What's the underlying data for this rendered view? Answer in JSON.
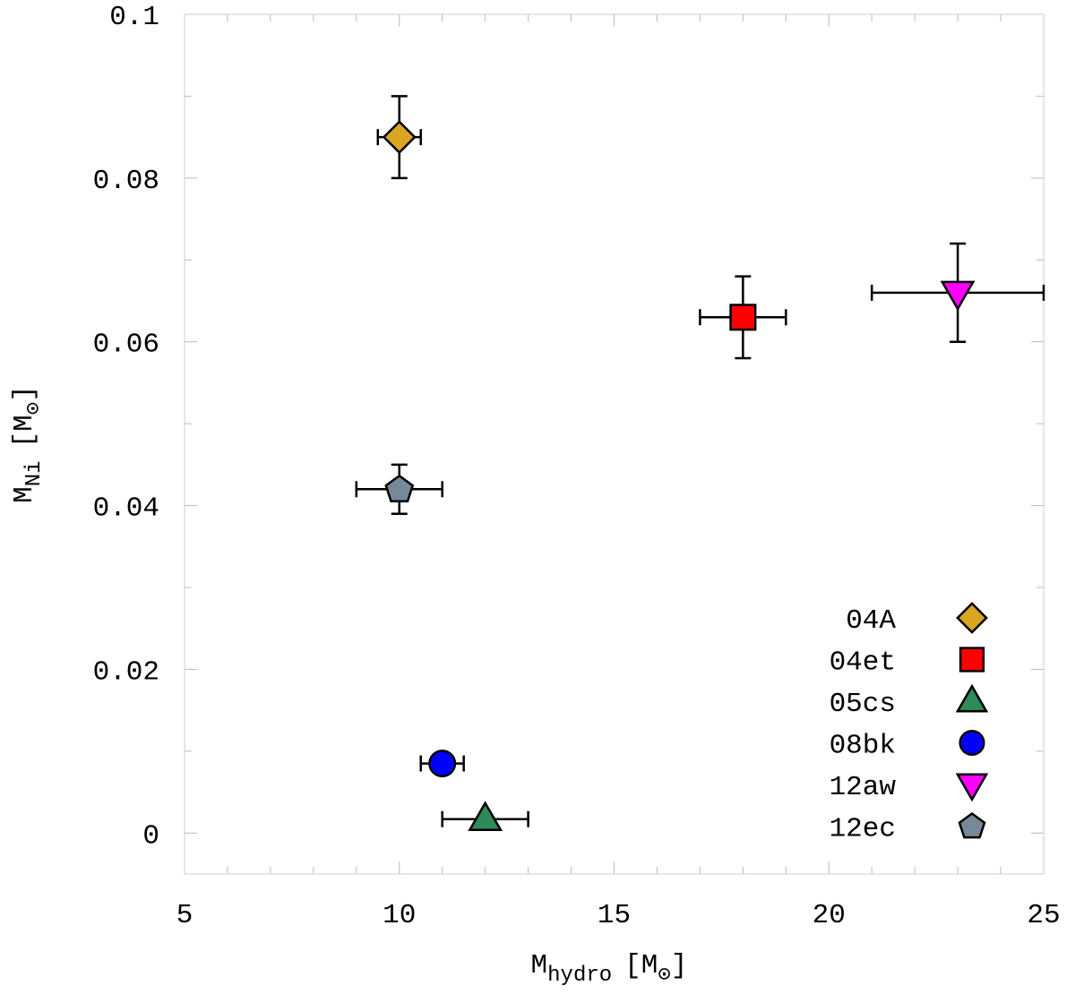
{
  "chart_data": {
    "type": "scatter",
    "title": "",
    "xlabel": {
      "main": "M",
      "sub": "hydro",
      "unit_open": "[M",
      "unit_close": "]"
    },
    "ylabel": {
      "main": "M",
      "sub": "Ni",
      "unit_open": "[M",
      "unit_close": "]"
    },
    "xlim": [
      5,
      25
    ],
    "ylim": [
      -0.005,
      0.1
    ],
    "xticks": [
      5,
      10,
      15,
      20,
      25
    ],
    "xtick_labels": [
      "5",
      "10",
      "15",
      "20",
      "25"
    ],
    "xminor_step": 1,
    "yticks": [
      0,
      0.02,
      0.04,
      0.06,
      0.08,
      0.1
    ],
    "ytick_labels": [
      "0",
      "0.02",
      "0.04",
      "0.06",
      "0.08",
      "0.1"
    ],
    "yminor_step": 0.01,
    "legend_position": "bottom-right",
    "series": [
      {
        "name": "04A",
        "marker": "diamond",
        "color": "#DAA520",
        "x": 10,
        "y": 0.085,
        "xerr": 0.5,
        "yerr": 0.005
      },
      {
        "name": "04et",
        "marker": "square",
        "color": "#FF0000",
        "x": 18,
        "y": 0.063,
        "xerr": 1.0,
        "yerr": 0.005
      },
      {
        "name": "05cs",
        "marker": "triangle",
        "color": "#2E8B57",
        "x": 12,
        "y": 0.0017,
        "xerr": 1.0,
        "yerr": 0
      },
      {
        "name": "08bk",
        "marker": "circle",
        "color": "#0000FF",
        "x": 11,
        "y": 0.0085,
        "xerr": 0.5,
        "yerr": 0
      },
      {
        "name": "12aw",
        "marker": "triangle-down",
        "color": "#FF00FF",
        "x": 23,
        "y": 0.066,
        "xerr": 2.0,
        "yerr": 0.006
      },
      {
        "name": "12ec",
        "marker": "pentagon",
        "color": "#778899",
        "x": 10,
        "y": 0.042,
        "xerr": 1.0,
        "yerr": 0.003
      }
    ]
  }
}
